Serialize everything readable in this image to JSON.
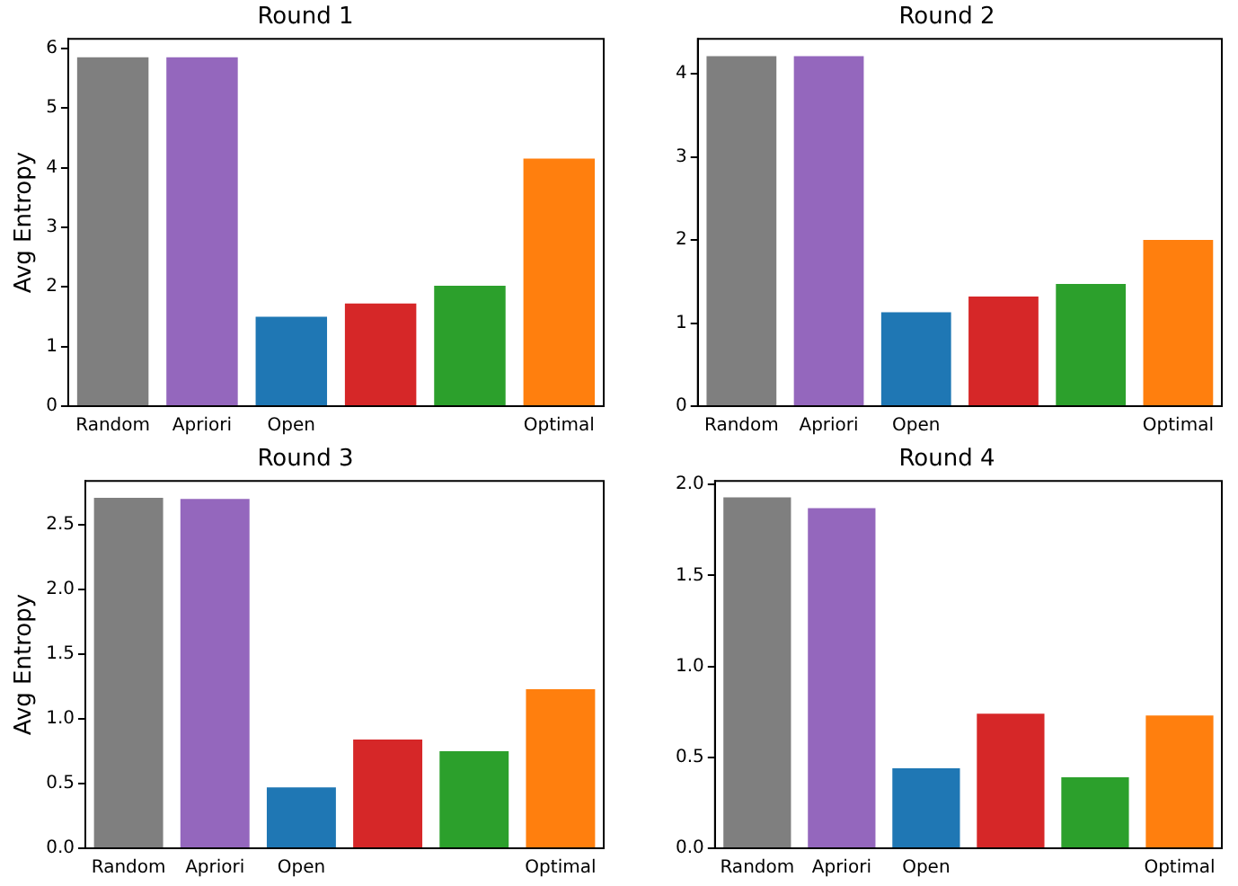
{
  "chart_data": [
    {
      "type": "bar",
      "title": "Round 1",
      "ylabel": "Avg Entropy",
      "categories": [
        "Random",
        "Apriori",
        "Open",
        null,
        null,
        "Optimal"
      ],
      "values": [
        5.85,
        5.85,
        1.5,
        1.72,
        2.02,
        4.15
      ],
      "colors": [
        "#7f7f7f",
        "#9467bd",
        "#1f77b4",
        "#d62728",
        "#2ca02c",
        "#ff7f0e"
      ],
      "ylim": [
        0,
        6.16
      ],
      "yticks": [
        0,
        1,
        2,
        3,
        4,
        5,
        6
      ],
      "grid": false,
      "legend": false
    },
    {
      "type": "bar",
      "title": "Round 2",
      "categories": [
        "Random",
        "Apriori",
        "Open",
        null,
        null,
        "Optimal"
      ],
      "values": [
        4.21,
        4.21,
        1.13,
        1.32,
        1.47,
        2.0
      ],
      "colors": [
        "#7f7f7f",
        "#9467bd",
        "#1f77b4",
        "#d62728",
        "#2ca02c",
        "#ff7f0e"
      ],
      "ylim": [
        0,
        4.42
      ],
      "yticks": [
        0,
        1,
        2,
        3,
        4
      ],
      "grid": false,
      "legend": false
    },
    {
      "type": "bar",
      "title": "Round 3",
      "ylabel": "Avg Entropy",
      "categories": [
        "Random",
        "Apriori",
        "Open",
        null,
        null,
        "Optimal"
      ],
      "values": [
        2.71,
        2.7,
        0.47,
        0.84,
        0.75,
        1.23
      ],
      "colors": [
        "#7f7f7f",
        "#9467bd",
        "#1f77b4",
        "#d62728",
        "#2ca02c",
        "#ff7f0e"
      ],
      "ylim": [
        0,
        2.84
      ],
      "yticks": [
        {
          "value": 0,
          "label": "0.0"
        },
        {
          "value": 0.5,
          "label": "0.5"
        },
        {
          "value": 1,
          "label": "1.0"
        },
        {
          "value": 1.5,
          "label": "1.5"
        },
        {
          "value": 2,
          "label": "2.0"
        },
        {
          "value": 2.5,
          "label": "2.5"
        }
      ],
      "grid": false,
      "legend": false
    },
    {
      "type": "bar",
      "title": "Round 4",
      "categories": [
        "Random",
        "Apriori",
        "Open",
        null,
        null,
        "Optimal"
      ],
      "values": [
        1.93,
        1.87,
        0.44,
        0.74,
        0.39,
        0.73
      ],
      "colors": [
        "#7f7f7f",
        "#9467bd",
        "#1f77b4",
        "#d62728",
        "#2ca02c",
        "#ff7f0e"
      ],
      "ylim": [
        0,
        2.02
      ],
      "yticks": [
        {
          "value": 0,
          "label": "0.0"
        },
        {
          "value": 0.5,
          "label": "0.5"
        },
        {
          "value": 1,
          "label": "1.0"
        },
        {
          "value": 1.5,
          "label": "1.5"
        },
        {
          "value": 2,
          "label": "2.0"
        }
      ],
      "grid": false,
      "legend": false
    }
  ]
}
